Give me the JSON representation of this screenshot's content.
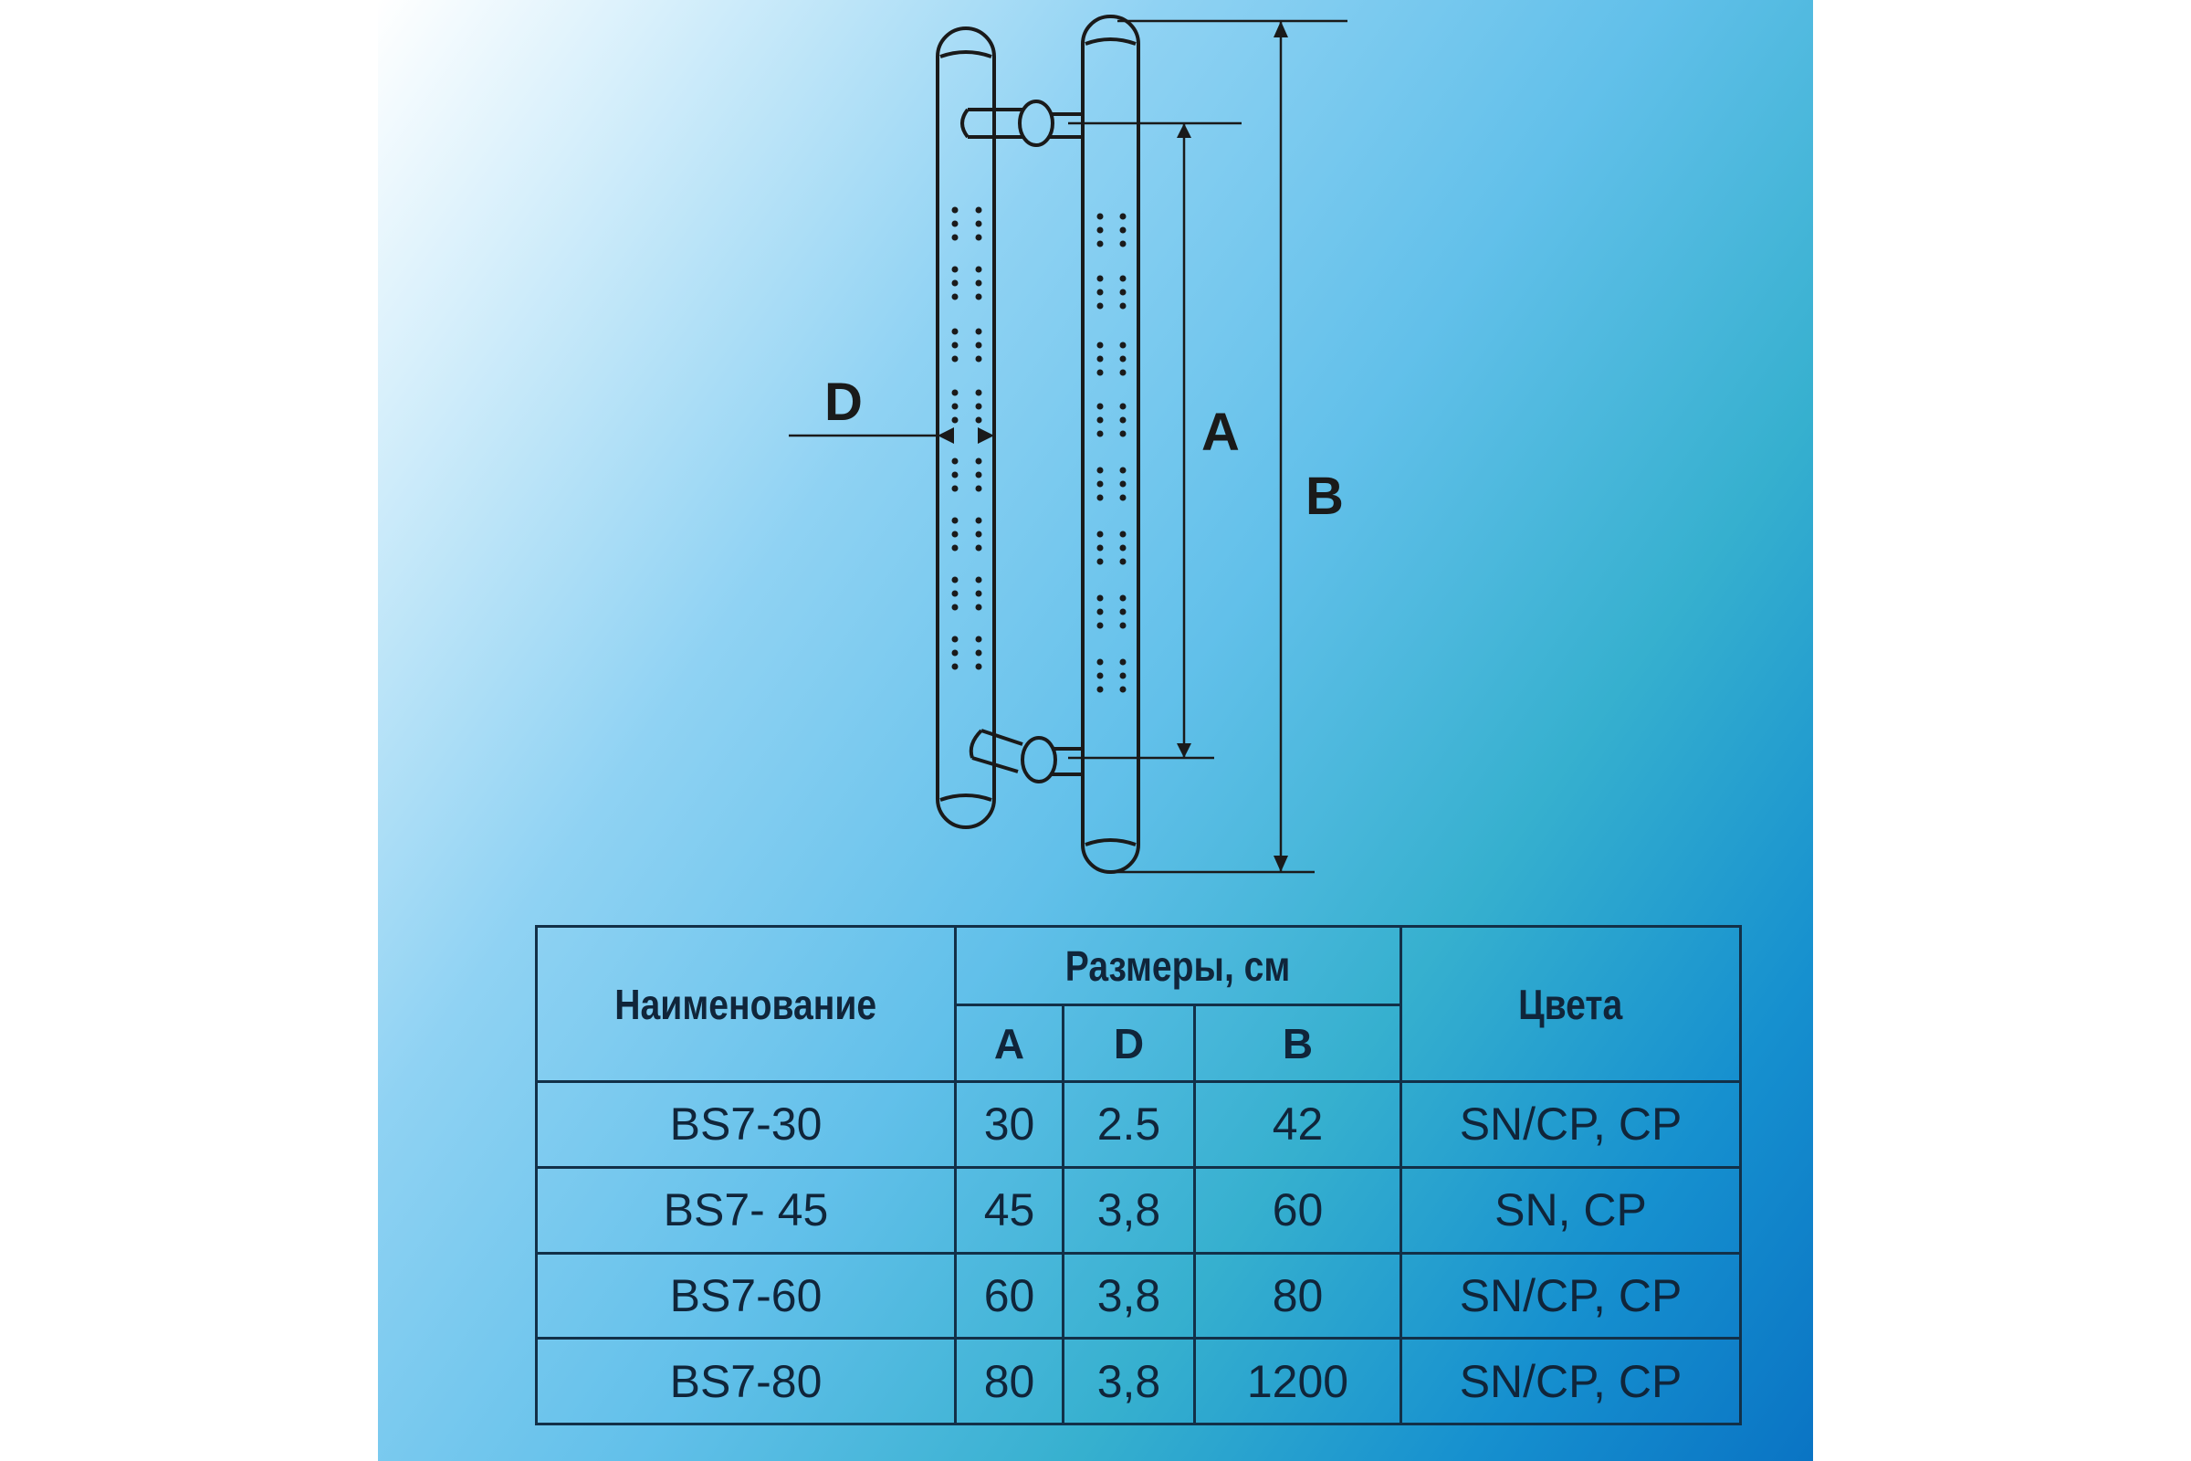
{
  "diagram": {
    "labels": {
      "d": "D",
      "a": "A",
      "b": "B"
    }
  },
  "table": {
    "header_name": "Наименование",
    "header_sizes": "Размеры, см",
    "header_colors": "Цвета",
    "sub_headers": [
      "A",
      "D",
      "B"
    ],
    "rows": [
      {
        "name": "BS7-30",
        "a": "30",
        "d": "2.5",
        "b": "42",
        "colors": "SN/CP, CP"
      },
      {
        "name": "BS7- 45",
        "a": "45",
        "d": "3,8",
        "b": "60",
        "colors": "SN, CP"
      },
      {
        "name": "BS7-60",
        "a": "60",
        "d": "3,8",
        "b": "80",
        "colors": "SN/CP, CP"
      },
      {
        "name": "BS7-80",
        "a": "80",
        "d": "3,8",
        "b": "1200",
        "colors": "SN/CP, CP"
      }
    ]
  }
}
